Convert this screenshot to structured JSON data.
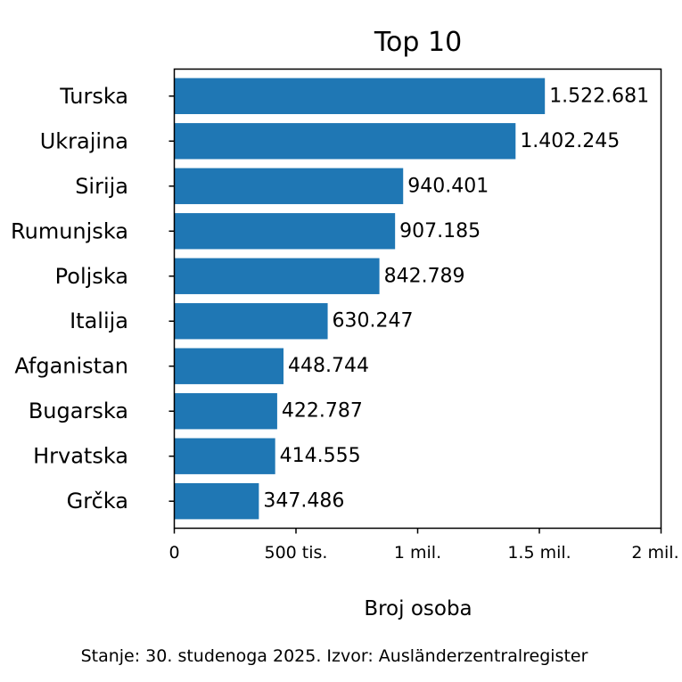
{
  "chart_data": {
    "type": "bar",
    "orientation": "horizontal",
    "title": "Top 10",
    "xlabel": "Broj osoba",
    "ylabel": "",
    "footnote": "Stanje: 30. studenoga 2025.  Izvor: Ausländerzentralregister",
    "categories": [
      "Turska",
      "Ukrajina",
      "Sirija",
      "Rumunjska",
      "Poljska",
      "Italija",
      "Afganistan",
      "Bugarska",
      "Hrvatska",
      "Grčka"
    ],
    "values": [
      1522681,
      1402245,
      940401,
      907185,
      842789,
      630247,
      448744,
      422787,
      414555,
      347486
    ],
    "value_labels": [
      "1.522.681",
      "1.402.245",
      "940.401",
      "907.185",
      "842.789",
      "630.247",
      "448.744",
      "422.787",
      "414.555",
      "347.486"
    ],
    "xlim": [
      0,
      2000000
    ],
    "xticks": [
      {
        "value": 0,
        "label": "0"
      },
      {
        "value": 500000,
        "label": "500 tis."
      },
      {
        "value": 1000000,
        "label": "1 mil."
      },
      {
        "value": 1500000,
        "label": "1.5 mil."
      },
      {
        "value": 2000000,
        "label": "2 mil."
      }
    ],
    "grid": false,
    "bar_color": "#1f77b4"
  }
}
